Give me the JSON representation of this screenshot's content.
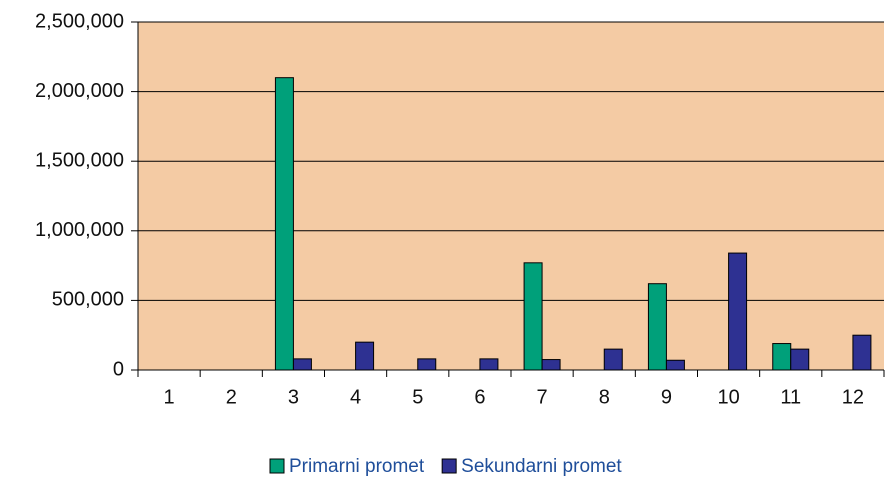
{
  "chart_data": {
    "type": "bar",
    "categories": [
      "1",
      "2",
      "3",
      "4",
      "5",
      "6",
      "7",
      "8",
      "9",
      "10",
      "11",
      "12"
    ],
    "series": [
      {
        "name": "Primarni promet",
        "color": "#00a07a",
        "values": [
          0,
          0,
          2100000,
          0,
          0,
          0,
          770000,
          0,
          620000,
          0,
          190000,
          0
        ]
      },
      {
        "name": "Sekundarni promet",
        "color": "#2e3192",
        "values": [
          0,
          0,
          80000,
          200000,
          80000,
          80000,
          75000,
          150000,
          70000,
          840000,
          150000,
          250000
        ]
      }
    ],
    "ylim": [
      0,
      2500000
    ],
    "yticks": [
      0,
      {
        "value": 500000,
        "label": "500,000"
      },
      {
        "value": 1000000,
        "label": "1,000,000"
      },
      {
        "value": 1500000,
        "label": "1,500,000"
      },
      {
        "value": 2000000,
        "label": "2,000,000"
      },
      {
        "value": 2500000,
        "label": "2,500,000"
      }
    ],
    "grid": true,
    "plot_background": "#f4cba4",
    "legend": "bottom"
  }
}
